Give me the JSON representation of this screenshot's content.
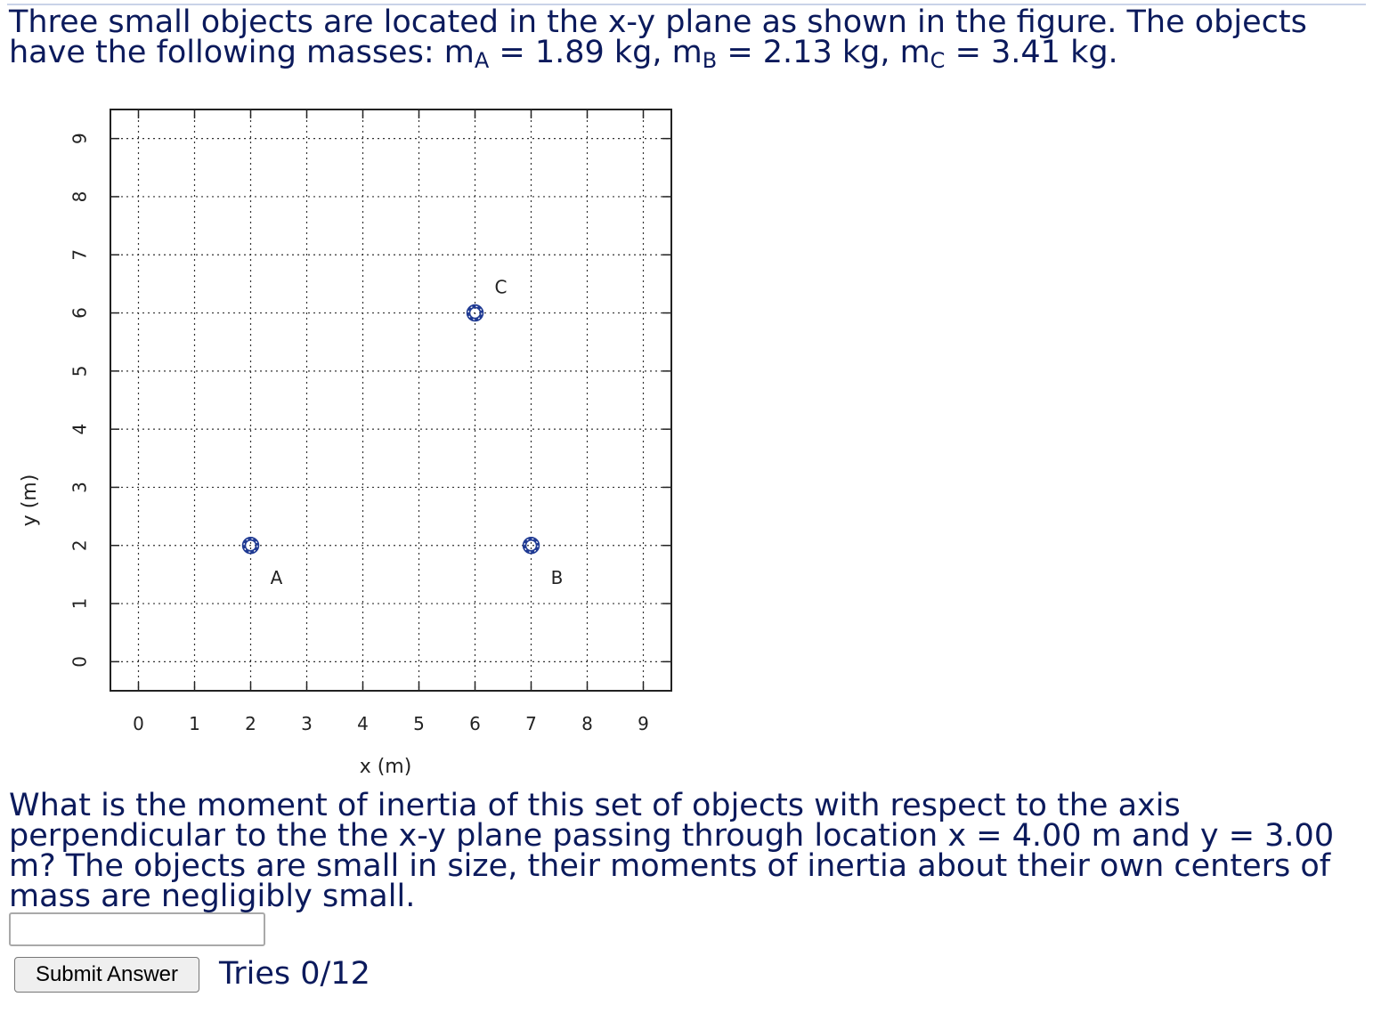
{
  "problem": {
    "intro_1": "Three small objects are located in the x-y plane as shown in the figure. The objects have the following masses: m",
    "mass_a_sub": "A",
    "mass_a_value": " = 1.89 kg, m",
    "mass_b_sub": "B",
    "mass_b_value": " = 2.13 kg, m",
    "mass_c_sub": "C",
    "mass_c_value": " = 3.41 kg.",
    "question": "What is the moment of inertia of this set of objects with respect to the axis perpendicular to the the x-y plane passing through location x = 4.00 m and y = 3.00 m? The objects are small in size, their moments of inertia about their own centers of mass are negligibly small."
  },
  "answer": {
    "value": "",
    "placeholder": ""
  },
  "submit_label": "Submit Answer",
  "tries_label": "Tries 0/12",
  "chart_data": {
    "type": "scatter",
    "xlabel": "x (m)",
    "ylabel": "y (m)",
    "xlim": [
      -0.5,
      9.5
    ],
    "ylim": [
      -0.5,
      9.5
    ],
    "x_ticks": [
      0,
      1,
      2,
      3,
      4,
      5,
      6,
      7,
      8,
      9
    ],
    "y_ticks": [
      0,
      1,
      2,
      3,
      4,
      5,
      6,
      7,
      8,
      9
    ],
    "grid": true,
    "marker_color": "#1f3a93",
    "points": [
      {
        "label": "A",
        "x": 2,
        "y": 2
      },
      {
        "label": "B",
        "x": 7,
        "y": 2
      },
      {
        "label": "C",
        "x": 6,
        "y": 6
      }
    ]
  }
}
